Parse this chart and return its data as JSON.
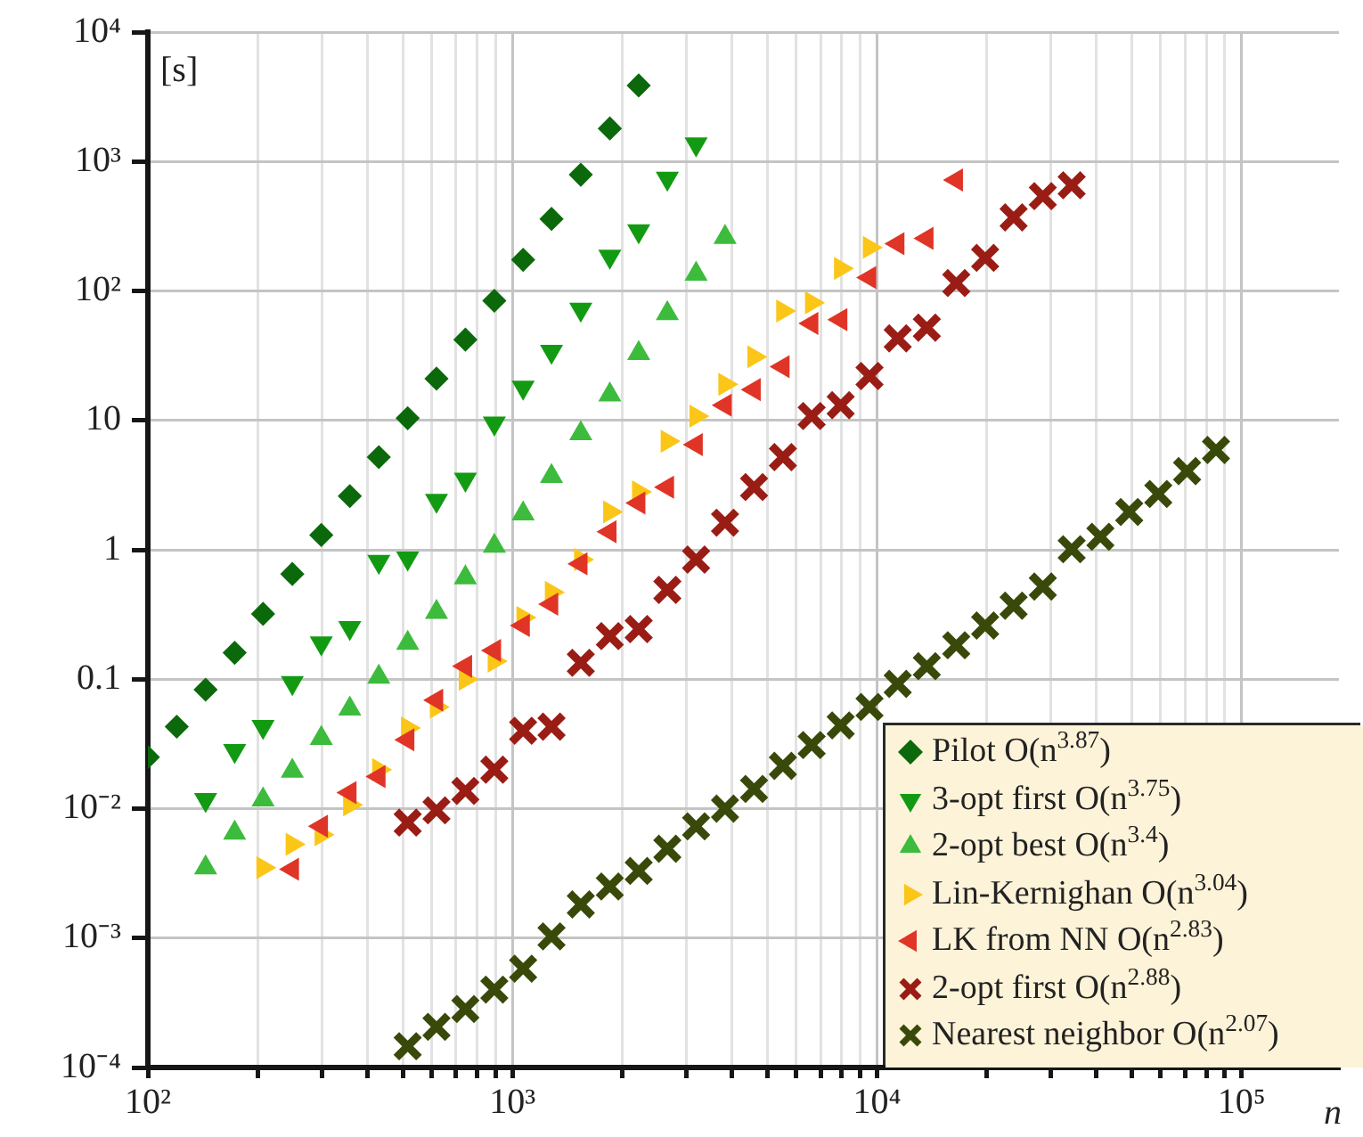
{
  "chart_data": {
    "type": "scatter",
    "ylabel": "[s]",
    "xlabel": "n",
    "log": "xy",
    "grid": true,
    "legend": "bottom right",
    "xlim": [
      100,
      185000
    ],
    "ylim": [
      0.0001,
      10000
    ],
    "xticks": [
      {
        "value": 100,
        "label": "10²"
      },
      {
        "value": 200,
        "label": null
      },
      {
        "value": 300,
        "label": null
      },
      {
        "value": 400,
        "label": null
      },
      {
        "value": 500,
        "label": null
      },
      {
        "value": 600,
        "label": null
      },
      {
        "value": 700,
        "label": null
      },
      {
        "value": 800,
        "label": null
      },
      {
        "value": 900,
        "label": null
      },
      {
        "value": 1000,
        "label": "10³"
      },
      {
        "value": 2000,
        "label": null
      },
      {
        "value": 3000,
        "label": null
      },
      {
        "value": 4000,
        "label": null
      },
      {
        "value": 5000,
        "label": null
      },
      {
        "value": 6000,
        "label": null
      },
      {
        "value": 7000,
        "label": null
      },
      {
        "value": 8000,
        "label": null
      },
      {
        "value": 9000,
        "label": null
      },
      {
        "value": 10000,
        "label": "10⁴"
      },
      {
        "value": 20000,
        "label": null
      },
      {
        "value": 30000,
        "label": null
      },
      {
        "value": 40000,
        "label": null
      },
      {
        "value": 50000,
        "label": null
      },
      {
        "value": 60000,
        "label": null
      },
      {
        "value": 70000,
        "label": null
      },
      {
        "value": 80000,
        "label": null
      },
      {
        "value": 90000,
        "label": null
      },
      {
        "value": 100000,
        "label": "10⁵"
      }
    ],
    "yticks": [
      {
        "value": 0.0001,
        "label": "10⁻⁴"
      },
      {
        "value": 0.001,
        "label": "10⁻³"
      },
      {
        "value": 0.01,
        "label": "10⁻²"
      },
      0.1,
      1,
      10,
      {
        "value": 100,
        "label": "10²"
      },
      {
        "value": 1000,
        "label": "10³"
      },
      {
        "value": 10000,
        "label": "10⁴"
      }
    ],
    "series": [
      {
        "name": "Pilot O(n$^{3.87}$)",
        "color": "#0b690b",
        "marker": "diamond",
        "x": [
          100,
          120,
          144,
          173,
          207,
          249,
          299,
          358,
          430,
          516,
          619,
          743,
          892,
          1070,
          1280,
          1540,
          1850,
          2220
        ],
        "values": [
          0.025,
          0.043,
          0.083,
          0.16,
          0.32,
          0.65,
          1.3,
          2.6,
          5.2,
          10.4,
          21,
          42,
          84,
          174,
          360,
          790,
          1800,
          3870
        ]
      },
      {
        "name": "3-opt first O(n$^{3.75}$)",
        "color": "#129b12",
        "marker": "triangle-down",
        "x": [
          144,
          173,
          207,
          249,
          299,
          358,
          430,
          516,
          619,
          743,
          892,
          1070,
          1280,
          1540,
          1850,
          2220,
          2660,
          3190
        ],
        "values": [
          0.0117,
          0.028,
          0.043,
          0.094,
          0.19,
          0.25,
          0.81,
          0.86,
          2.4,
          3.5,
          9.5,
          18,
          34,
          72,
          185,
          290,
          740,
          1360
        ]
      },
      {
        "name": "2-opt best O(n$^{3.4}$)",
        "color": "#3dbb3d",
        "marker": "triangle",
        "x": [
          144,
          173,
          207,
          249,
          299,
          358,
          430,
          516,
          619,
          743,
          892,
          1070,
          1280,
          1540,
          1850,
          2220,
          2660,
          3190,
          3830
        ],
        "values": [
          0.0035,
          0.0065,
          0.0117,
          0.0195,
          0.035,
          0.059,
          0.104,
          0.19,
          0.33,
          0.61,
          1.07,
          1.9,
          3.7,
          7.9,
          15.8,
          33,
          67,
          135,
          260
        ]
      },
      {
        "name": "Lin-Kernighan O(n$^{3.04}$)",
        "color": "#fbc618",
        "marker": "triangle-right",
        "x": [
          207,
          249,
          299,
          358,
          430,
          516,
          619,
          743,
          892,
          1070,
          1280,
          1540,
          1850,
          2220,
          2660,
          3190,
          3830,
          4600,
          5520,
          6620,
          7950,
          9540
        ],
        "values": [
          0.0035,
          0.0053,
          0.0063,
          0.0107,
          0.02,
          0.042,
          0.061,
          0.1,
          0.138,
          0.3,
          0.47,
          0.84,
          1.96,
          2.8,
          6.9,
          10.8,
          19,
          31,
          70,
          81,
          149,
          217
        ]
      },
      {
        "name": "LK from NN O(n$^{2.83}$)",
        "color": "#e03426",
        "marker": "triangle-left",
        "x": [
          249,
          299,
          358,
          430,
          516,
          619,
          743,
          892,
          1070,
          1280,
          1540,
          1850,
          2220,
          2660,
          3190,
          3830,
          4600,
          5520,
          6620,
          7950,
          9540,
          11400,
          13700,
          16500
        ],
        "values": [
          0.0034,
          0.0073,
          0.0133,
          0.0177,
          0.034,
          0.069,
          0.126,
          0.167,
          0.26,
          0.38,
          0.78,
          1.38,
          2.3,
          3.05,
          6.5,
          13.1,
          17.3,
          26,
          56,
          60,
          127,
          232,
          255,
          721
        ]
      },
      {
        "name": "2-opt first O(n$^{2.88}$)",
        "color": "#9a1d15",
        "marker": "cross",
        "x": [
          516,
          619,
          743,
          892,
          1070,
          1280,
          1540,
          1850,
          2220,
          2660,
          3190,
          3830,
          4600,
          5520,
          6620,
          7950,
          9540,
          11400,
          13700,
          16500,
          19800,
          23700,
          28500,
          34200
        ],
        "values": [
          0.0078,
          0.0097,
          0.0137,
          0.02,
          0.04,
          0.043,
          0.134,
          0.215,
          0.244,
          0.49,
          0.84,
          1.62,
          3.05,
          5.2,
          10.8,
          13.1,
          22,
          43,
          52,
          115,
          180,
          370,
          540,
          655
        ]
      },
      {
        "name": "Nearest neighbor O(n$^{2.07}$)",
        "color": "#394909",
        "marker": "cross",
        "x": [
          516,
          619,
          743,
          892,
          1070,
          1280,
          1540,
          1850,
          2220,
          2660,
          3190,
          3830,
          4600,
          5520,
          6620,
          7950,
          9540,
          11400,
          13700,
          16500,
          19800,
          23700,
          28500,
          34200,
          41000,
          49200,
          59100,
          70900,
          85100
        ],
        "values": [
          0.000146,
          0.000206,
          0.000283,
          0.0004,
          0.00058,
          0.00103,
          0.00182,
          0.0025,
          0.0033,
          0.0049,
          0.0073,
          0.01,
          0.0142,
          0.0214,
          0.031,
          0.044,
          0.061,
          0.092,
          0.126,
          0.183,
          0.26,
          0.37,
          0.52,
          1.01,
          1.26,
          1.96,
          2.7,
          4.05,
          5.9
        ]
      }
    ]
  }
}
